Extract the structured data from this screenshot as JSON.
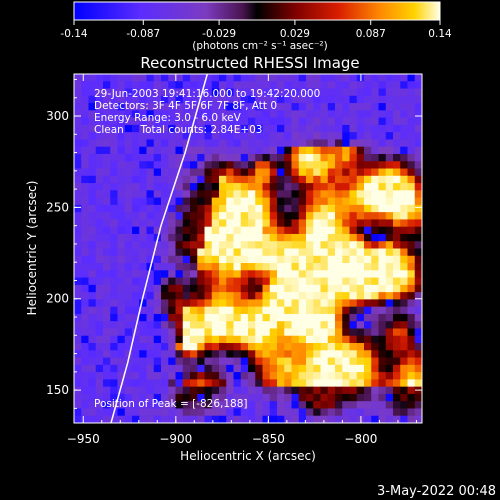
{
  "colorbar": {
    "ticks": [
      "-0.14",
      "-0.087",
      "-0.029",
      "0.029",
      "0.087",
      "0.14"
    ],
    "unit_label": "(photons cm⁻² s⁻¹ asec⁻²)",
    "range": [
      -0.14,
      0.14
    ]
  },
  "info": {
    "line1": "29-Jun-2003 19:41:16.000 to 19:42:20.000",
    "line2": "Detectors: 3F 4F 5F 6F 7F 8F, Att 0",
    "line3": "Energy Range: 3.0 - 6.0 keV",
    "line4": "Clean     Total counts: 2.84E+03",
    "peak": "Position of Peak = [-826,188]"
  },
  "footer": {
    "date": "3-May-2022 00:48"
  },
  "chart_data": {
    "type": "heatmap",
    "title": "Reconstructed RHESSI Image",
    "xlabel": "Heliocentric X (arcsec)",
    "ylabel": "Heliocentric Y (arcsec)",
    "xlim": [
      -955,
      -767
    ],
    "ylim": [
      132,
      323
    ],
    "x_ticks": [
      -950,
      -900,
      -850,
      -800
    ],
    "y_ticks": [
      150,
      200,
      250,
      300
    ],
    "colormap": "red-temperature with violet/blue negatives",
    "peak": [
      -826,
      188
    ],
    "limb_curve": [
      [
        -935,
        132
      ],
      [
        -926,
        165
      ],
      [
        -918,
        200
      ],
      [
        -908,
        240
      ],
      [
        -895,
        280
      ],
      [
        -883,
        323
      ]
    ]
  }
}
